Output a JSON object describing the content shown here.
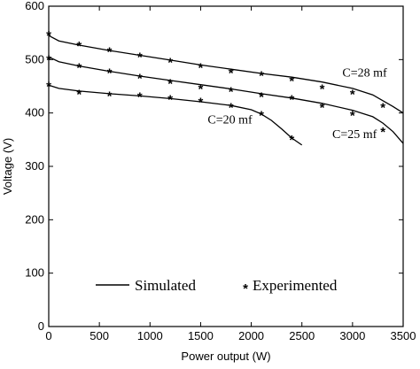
{
  "chart_data": {
    "type": "line",
    "title": "",
    "xlabel": "Power output (W)",
    "ylabel": "Voltage (V)",
    "xlim": [
      0,
      3500
    ],
    "ylim": [
      0,
      600
    ],
    "xticks": [
      0,
      500,
      1000,
      1500,
      2000,
      2500,
      3000,
      3500
    ],
    "yticks": [
      0,
      100,
      200,
      300,
      400,
      500,
      600
    ],
    "grid": false,
    "legend": {
      "position": "bottom-center",
      "entries": [
        {
          "label": "Simulated",
          "style": "line"
        },
        {
          "label": "Experimented",
          "style": "asterisk"
        }
      ]
    },
    "series": [
      {
        "name": "C=28 mf",
        "kind": "simulated",
        "x": [
          0,
          100,
          300,
          600,
          900,
          1200,
          1500,
          1800,
          2100,
          2400,
          2700,
          3000,
          3200,
          3300,
          3400,
          3500
        ],
        "y": [
          545,
          535,
          527,
          517,
          508,
          499,
          490,
          482,
          474,
          467,
          458,
          446,
          434,
          423,
          412,
          400
        ]
      },
      {
        "name": "C=28 mf",
        "kind": "experimented",
        "x": [
          0,
          300,
          600,
          900,
          1200,
          1500,
          1800,
          2100,
          2400,
          2700,
          3000,
          3300
        ],
        "y": [
          550,
          530,
          520,
          510,
          500,
          490,
          480,
          475,
          465,
          450,
          440,
          415
        ]
      },
      {
        "name": "C=25 mf",
        "kind": "simulated",
        "x": [
          0,
          100,
          300,
          600,
          900,
          1200,
          1500,
          1800,
          2100,
          2400,
          2700,
          3000,
          3200,
          3300,
          3400,
          3500
        ],
        "y": [
          505,
          496,
          488,
          478,
          469,
          461,
          453,
          445,
          436,
          428,
          418,
          405,
          393,
          381,
          365,
          343
        ]
      },
      {
        "name": "C=25 mf",
        "kind": "experimented",
        "x": [
          0,
          300,
          600,
          900,
          1200,
          1500,
          1800,
          2100,
          2400,
          2700,
          3000,
          3300
        ],
        "y": [
          505,
          490,
          480,
          470,
          460,
          450,
          445,
          435,
          430,
          415,
          400,
          370
        ]
      },
      {
        "name": "C=20 mf",
        "kind": "simulated",
        "x": [
          0,
          100,
          300,
          600,
          900,
          1200,
          1500,
          1800,
          2000,
          2100,
          2200,
          2300,
          2400,
          2500
        ],
        "y": [
          452,
          446,
          441,
          436,
          432,
          427,
          421,
          414,
          406,
          398,
          386,
          370,
          353,
          340
        ]
      },
      {
        "name": "C=20 mf",
        "kind": "experimented",
        "x": [
          0,
          300,
          600,
          900,
          1200,
          1500,
          1800,
          2100,
          2400
        ],
        "y": [
          455,
          440,
          437,
          435,
          430,
          425,
          415,
          400,
          355
        ]
      }
    ],
    "annotations": [
      {
        "text": "C=28 mf",
        "x": 2900,
        "y": 468
      },
      {
        "text": "C=25 mf",
        "x": 2800,
        "y": 353
      },
      {
        "text": "C=20 mf",
        "x": 1570,
        "y": 380
      }
    ]
  }
}
